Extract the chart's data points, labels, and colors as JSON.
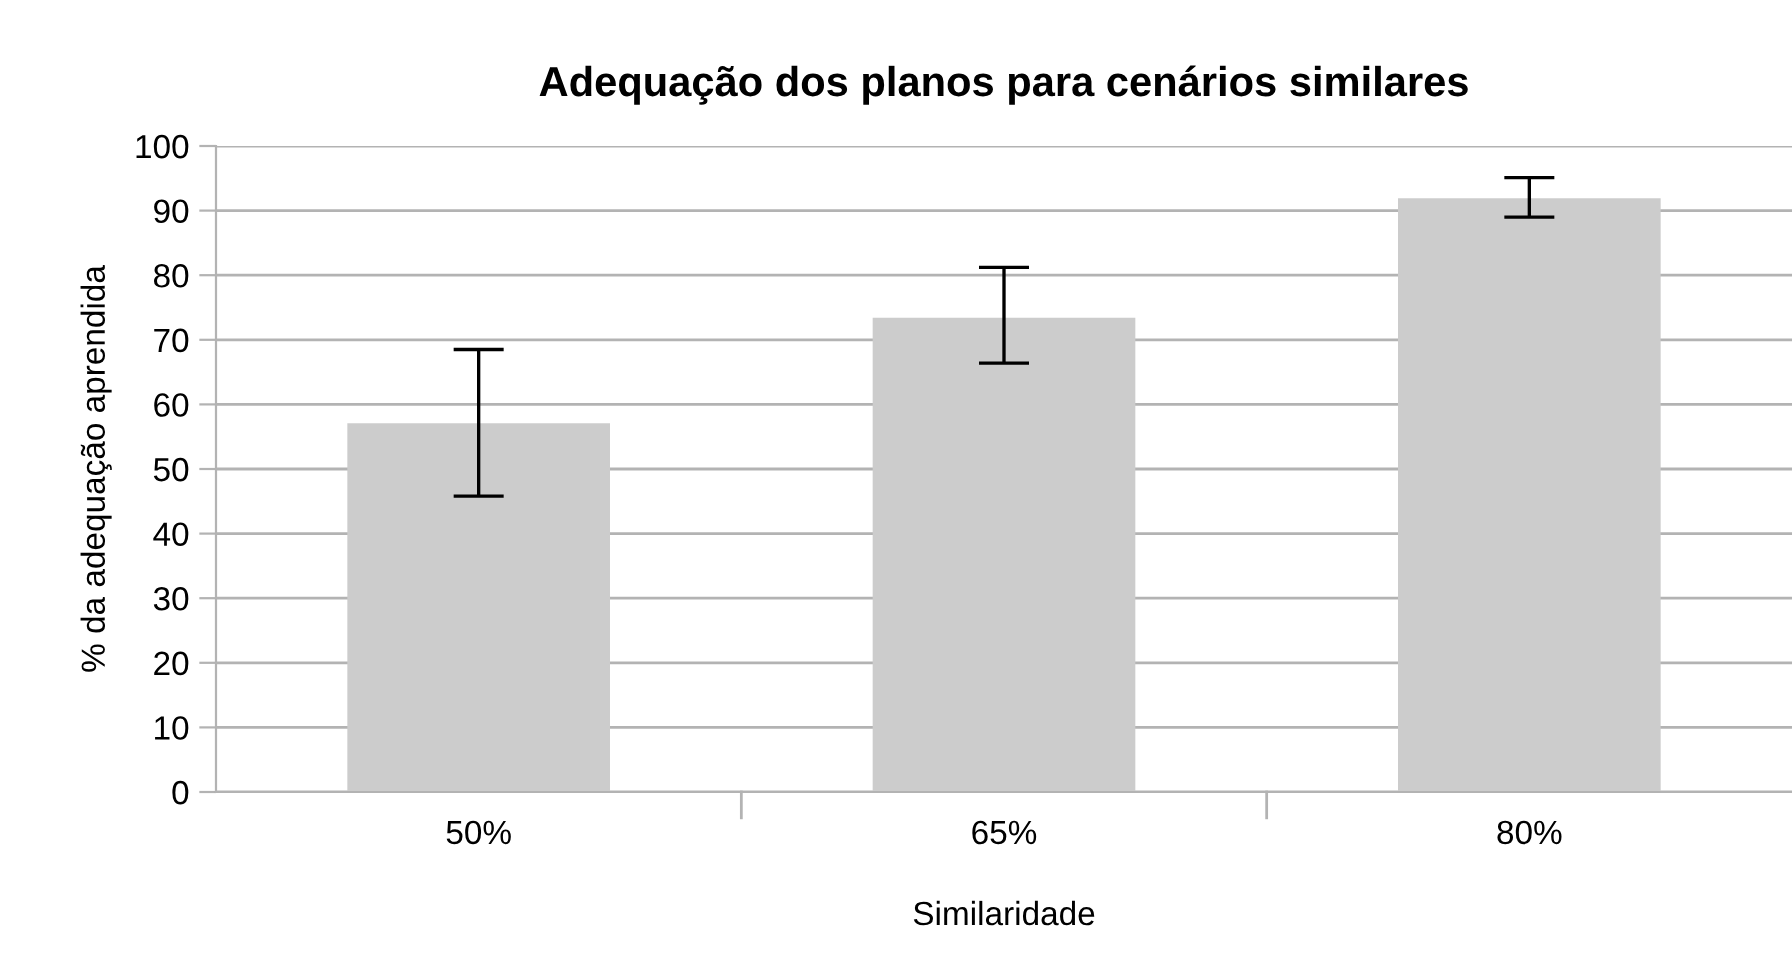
{
  "chart_data": {
    "type": "bar",
    "title": "Adequação dos planos para cenários similares",
    "xlabel": "Similaridade",
    "ylabel": "% da adequação aprendida",
    "categories": [
      "50%",
      "65%",
      "80%"
    ],
    "values": [
      57.1,
      73.4,
      91.9
    ],
    "errors": [
      [
        45.8,
        68.5
      ],
      [
        66.4,
        81.2
      ],
      [
        89.0,
        95.1
      ]
    ],
    "color": "#cccccc",
    "ylim": [
      0,
      100
    ],
    "yticks": [
      0,
      10,
      20,
      30,
      40,
      50,
      60,
      70,
      80,
      90,
      100
    ],
    "grid": "y"
  }
}
